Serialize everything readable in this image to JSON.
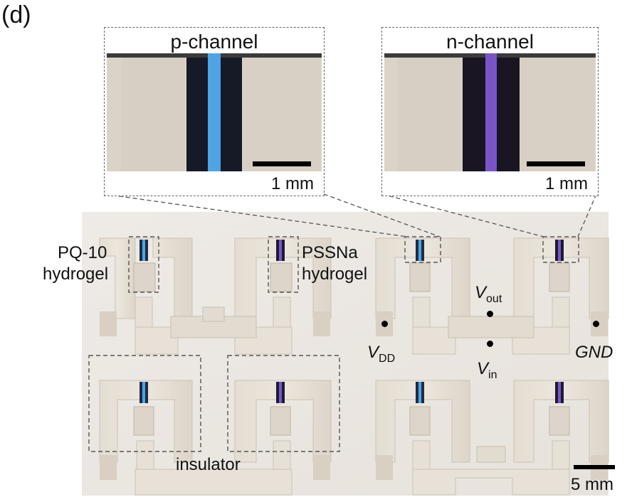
{
  "panel_label": "(d)",
  "insets": {
    "p_channel": {
      "title": "p-channel",
      "scale_label": "1 mm"
    },
    "n_channel": {
      "title": "n-channel",
      "scale_label": "1 mm"
    }
  },
  "labels": {
    "pq10": "PQ-10",
    "hydrogel_left": "hydrogel",
    "pssna": "PSSNa",
    "hydrogel_right": "hydrogel",
    "insulator": "insulator"
  },
  "terminals": {
    "vdd_symbol": "V",
    "vdd_sub": "DD",
    "vout_symbol": "V",
    "vout_sub": "out",
    "vin_symbol": "V",
    "vin_sub": "in",
    "gnd": "GND"
  },
  "scale_bar_main": "5 mm",
  "colors": {
    "p_channel": "#4ea4e4",
    "n_channel": "#7a55c8",
    "gold": "#e8e3db",
    "background": "#ffffff"
  }
}
